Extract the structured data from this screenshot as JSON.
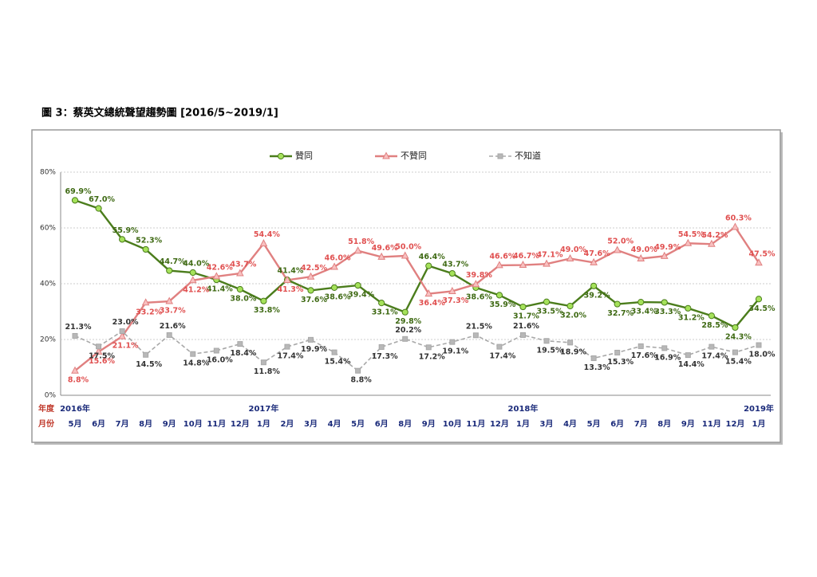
{
  "chart_data": {
    "type": "line",
    "title": "圖 3：蔡英文總統聲望趨勢圖 [2016/5~2019/1]",
    "year_axis_label": "年度",
    "month_axis_label": "月份",
    "categories": [
      "5月",
      "6月",
      "7月",
      "8月",
      "9月",
      "10月",
      "11月",
      "12月",
      "1月",
      "2月",
      "3月",
      "4月",
      "5月",
      "6月",
      "8月",
      "9月",
      "10月",
      "11月",
      "12月",
      "1月",
      "3月",
      "4月",
      "5月",
      "6月",
      "7月",
      "8月",
      "9月",
      "11月",
      "12月",
      "1月"
    ],
    "years": [
      "2016年",
      null,
      null,
      null,
      null,
      null,
      null,
      null,
      "2017年",
      null,
      null,
      null,
      null,
      null,
      null,
      null,
      null,
      null,
      null,
      "2018年",
      null,
      null,
      null,
      null,
      null,
      null,
      null,
      null,
      null,
      "2019年"
    ],
    "ylim": [
      0,
      80
    ],
    "yticks": [
      {
        "value": 0,
        "label": "0%"
      },
      {
        "value": 20,
        "label": "20%"
      },
      {
        "value": 40,
        "label": "40%"
      },
      {
        "value": 60,
        "label": "60%"
      },
      {
        "value": 80,
        "label": "80%"
      }
    ],
    "grid": true,
    "series": [
      {
        "name": "贊同",
        "color": "#4b7d1c",
        "marker": "circle",
        "marker_color": "#a5e25a",
        "label_color": "#3f6a14",
        "values": [
          69.9,
          67.0,
          55.9,
          52.3,
          44.7,
          44.0,
          41.4,
          38.0,
          33.8,
          41.4,
          37.6,
          38.6,
          39.4,
          33.1,
          29.8,
          46.4,
          43.7,
          38.6,
          35.9,
          31.7,
          33.5,
          32.0,
          39.2,
          32.7,
          33.4,
          33.3,
          31.2,
          28.5,
          24.3,
          34.5
        ],
        "value_labels": [
          "69.9%",
          "67.0%",
          "55.9%",
          "52.3%",
          "44.7%",
          "44.0%",
          "41.4%",
          "38.0%",
          "33.8%",
          "41.4%",
          "37.6%",
          "38.6%",
          "39.4%",
          "33.1%",
          "29.8%",
          "46.4%",
          "43.7%",
          "38.6%",
          "35.9%",
          "31.7%",
          "33.5%",
          "32.0%",
          "39.2%",
          "32.7%",
          "33.4%",
          "33.3%",
          "31.2%",
          "28.5%",
          "24.3%",
          "34.5%"
        ]
      },
      {
        "name": "不贊同",
        "color": "#e08080",
        "marker": "triangle",
        "marker_color": "#f8c0c0",
        "label_color": "#e05050",
        "values": [
          8.8,
          15.6,
          21.1,
          33.2,
          33.7,
          41.2,
          42.6,
          43.7,
          54.4,
          41.3,
          42.5,
          46.0,
          51.8,
          49.6,
          50.0,
          36.4,
          37.3,
          39.8,
          46.6,
          46.7,
          47.1,
          49.0,
          47.6,
          52.0,
          49.0,
          49.9,
          54.5,
          54.2,
          60.3,
          47.5
        ],
        "value_labels": [
          "8.8%",
          "15.6%",
          "21.1%",
          "33.2%",
          "33.7%",
          "41.2%",
          "42.6%",
          "43.7%",
          "54.4%",
          "41.3%",
          "42.5%",
          "46.0%",
          "51.8%",
          "49.6%",
          "50.0%",
          "36.4%",
          "37.3%",
          "39.8%",
          "46.6%",
          "46.7%",
          "47.1%",
          "49.0%",
          "47.6%",
          "52.0%",
          "49.0%",
          "49.9%",
          "54.5%",
          "54.2%",
          "60.3%",
          "47.5%"
        ]
      },
      {
        "name": "不知道",
        "color": "#a8a8a8",
        "marker": "square",
        "marker_color": "#b8b8b8",
        "label_color": "#333333",
        "dashed": true,
        "values": [
          21.3,
          17.5,
          23.0,
          14.5,
          21.6,
          14.8,
          16.0,
          18.4,
          11.8,
          17.4,
          19.9,
          15.4,
          8.8,
          17.3,
          20.2,
          17.2,
          19.1,
          21.5,
          17.4,
          21.6,
          19.5,
          18.9,
          13.3,
          15.3,
          17.6,
          16.9,
          14.4,
          17.4,
          15.4,
          18.0
        ],
        "value_labels": [
          "21.3%",
          "17.5%",
          "23.0%",
          "14.5%",
          "21.6%",
          "14.8%",
          "16.0%",
          "18.4%",
          "11.8%",
          "17.4%",
          "19.9%",
          "15.4%",
          "8.8%",
          "17.3%",
          "20.2%",
          "17.2%",
          "19.1%",
          "21.5%",
          "17.4%",
          "21.6%",
          "19.5%",
          "18.9%",
          "13.3%",
          "15.3%",
          "17.6%",
          "16.9%",
          "14.4%",
          "17.4%",
          "15.4%",
          "18.0%"
        ]
      }
    ]
  }
}
